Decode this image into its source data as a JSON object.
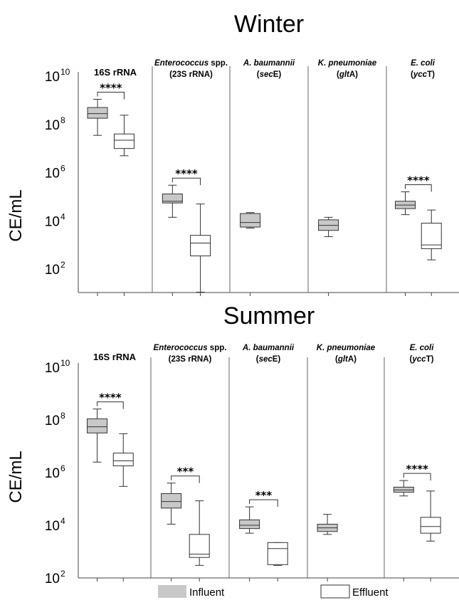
{
  "colors": {
    "influent": "#c8c8c8",
    "effluent": "#ffffff",
    "stroke": "#333333",
    "divider": "#666666"
  },
  "legend": [
    {
      "label": "Influent",
      "key": "influent"
    },
    {
      "label": "Effluent",
      "key": "effluent"
    }
  ],
  "chart_data": [
    {
      "type": "box",
      "title": "Winter",
      "ylabel": "CE/mL",
      "yscale": "log",
      "ylim": [
        10.0,
        10000000000.0
      ],
      "yticks": [
        {
          "base": "10",
          "exp": "10",
          "value": 10000000000.0
        },
        {
          "base": "10",
          "exp": "8",
          "value": 100000000.0
        },
        {
          "base": "10",
          "exp": "6",
          "value": 1000000.0
        },
        {
          "base": "10",
          "exp": "4",
          "value": 10000.0
        },
        {
          "base": "10",
          "exp": "2",
          "value": 100.0
        }
      ],
      "panels": [
        {
          "label_parts": [
            {
              "t": "16S rRNA",
              "i": false
            }
          ],
          "label_line2": [],
          "significance": "****",
          "boxes": [
            {
              "series": "Influent",
              "min": 35000000.0,
              "q1": 180000000.0,
              "median": 280000000.0,
              "q3": 500000000.0,
              "max": 1100000000.0
            },
            {
              "series": "Effluent",
              "min": 5000000.0,
              "q1": 10000000.0,
              "median": 22000000.0,
              "q3": 40000000.0,
              "max": 240000000.0
            }
          ]
        },
        {
          "label_parts": [
            {
              "t": "Enterococcus",
              "i": true
            },
            {
              "t": " spp.",
              "i": false
            }
          ],
          "label_line2": [
            {
              "t": "(23S rRNA)",
              "i": false
            }
          ],
          "significance": "****",
          "boxes": [
            {
              "series": "Influent",
              "min": 14000.0,
              "q1": 55000.0,
              "median": 65000.0,
              "q3": 130000.0,
              "max": 300000.0
            },
            {
              "series": "Effluent",
              "min": 11.0,
              "q1": 350,
              "median": 1200,
              "q3": 2500,
              "max": 50000.0
            }
          ]
        },
        {
          "label_parts": [
            {
              "t": "A. baumannii",
              "i": true
            }
          ],
          "label_line2": [
            {
              "t": "(",
              "i": false
            },
            {
              "t": "sec",
              "i": true
            },
            {
              "t": "E)",
              "i": false
            }
          ],
          "significance": "",
          "boxes": [
            {
              "series": "Influent",
              "min": 5000.0,
              "q1": 5500.0,
              "median": 8500.0,
              "q3": 20000.0,
              "max": 22000.0
            }
          ]
        },
        {
          "label_parts": [
            {
              "t": "K. pneumoniae",
              "i": true
            }
          ],
          "label_line2": [
            {
              "t": "(",
              "i": false
            },
            {
              "t": "glt",
              "i": true
            },
            {
              "t": "A)",
              "i": false
            }
          ],
          "significance": "",
          "boxes": [
            {
              "series": "Influent",
              "min": 2200.0,
              "q1": 4000.0,
              "median": 6500.0,
              "q3": 11000.0,
              "max": 14000.0
            }
          ]
        },
        {
          "label_parts": [
            {
              "t": "E. coli",
              "i": true
            }
          ],
          "label_line2": [
            {
              "t": "(",
              "i": false
            },
            {
              "t": "ycc",
              "i": true
            },
            {
              "t": "T)",
              "i": false
            }
          ],
          "significance": "****",
          "boxes": [
            {
              "series": "Influent",
              "min": 18000.0,
              "q1": 32000.0,
              "median": 45000.0,
              "q3": 65000.0,
              "max": 160000.0
            },
            {
              "series": "Effluent",
              "min": 240,
              "q1": 700,
              "median": 1000,
              "q3": 8000,
              "max": 28000.0
            }
          ]
        }
      ]
    },
    {
      "type": "box",
      "title": "Summer",
      "ylabel": "CE/mL",
      "yscale": "log",
      "ylim": [
        100.0,
        10000000000.0
      ],
      "yticks": [
        {
          "base": "10",
          "exp": "10",
          "value": 10000000000.0
        },
        {
          "base": "10",
          "exp": "8",
          "value": 100000000.0
        },
        {
          "base": "10",
          "exp": "6",
          "value": 1000000.0
        },
        {
          "base": "10",
          "exp": "4",
          "value": 10000.0
        },
        {
          "base": "10",
          "exp": "2",
          "value": 100.0
        }
      ],
      "panels": [
        {
          "label_parts": [
            {
              "t": "16S rRNA",
              "i": false
            }
          ],
          "label_line2": [],
          "significance": "****",
          "boxes": [
            {
              "series": "Influent",
              "min": 2500000.0,
              "q1": 32000000.0,
              "median": 55000000.0,
              "q3": 110000000.0,
              "max": 260000000.0
            },
            {
              "series": "Effluent",
              "min": 300000.0,
              "q1": 1800000.0,
              "median": 2800000.0,
              "q3": 5500000.0,
              "max": 30000000.0
            }
          ]
        },
        {
          "label_parts": [
            {
              "t": "Enterococcus",
              "i": true
            },
            {
              "t": " spp.",
              "i": false
            }
          ],
          "label_line2": [
            {
              "t": "(23S rRNA)",
              "i": false
            }
          ],
          "significance": "***",
          "boxes": [
            {
              "series": "Influent",
              "min": 11000.0,
              "q1": 45000.0,
              "median": 80000.0,
              "q3": 160000.0,
              "max": 400000.0
            },
            {
              "series": "Effluent",
              "min": 300,
              "q1": 600,
              "median": 800,
              "q3": 4500,
              "max": 85000.0
            }
          ]
        },
        {
          "label_parts": [
            {
              "t": "A. baumannii",
              "i": true
            }
          ],
          "label_line2": [
            {
              "t": "(",
              "i": false
            },
            {
              "t": "sec",
              "i": true
            },
            {
              "t": "E)",
              "i": false
            }
          ],
          "significance": "***",
          "boxes": [
            {
              "series": "Influent",
              "min": 5000.0,
              "q1": 7500.0,
              "median": 10000.0,
              "q3": 16000.0,
              "max": 50000.0
            },
            {
              "series": "Effluent",
              "min": 300,
              "q1": 320,
              "median": 1300,
              "q3": 2200,
              "max": 2200
            }
          ]
        },
        {
          "label_parts": [
            {
              "t": "K. pneumoniae",
              "i": true
            }
          ],
          "label_line2": [
            {
              "t": "(",
              "i": false
            },
            {
              "t": "glt",
              "i": true
            },
            {
              "t": "A)",
              "i": false
            }
          ],
          "significance": "",
          "boxes": [
            {
              "series": "Influent",
              "min": 4500.0,
              "q1": 5800.0,
              "median": 8000.0,
              "q3": 11000.0,
              "max": 26000.0
            }
          ]
        },
        {
          "label_parts": [
            {
              "t": "E. coli",
              "i": true
            }
          ],
          "label_line2": [
            {
              "t": "(",
              "i": false
            },
            {
              "t": "ycc",
              "i": true
            },
            {
              "t": "T)",
              "i": false
            }
          ],
          "significance": "****",
          "boxes": [
            {
              "series": "Influent",
              "min": 130000.0,
              "q1": 180000.0,
              "median": 220000.0,
              "q3": 280000.0,
              "max": 500000.0
            },
            {
              "series": "Effluent",
              "min": 2500.0,
              "q1": 5000.0,
              "median": 9000.0,
              "q3": 20000.0,
              "max": 200000.0
            }
          ]
        }
      ]
    }
  ]
}
